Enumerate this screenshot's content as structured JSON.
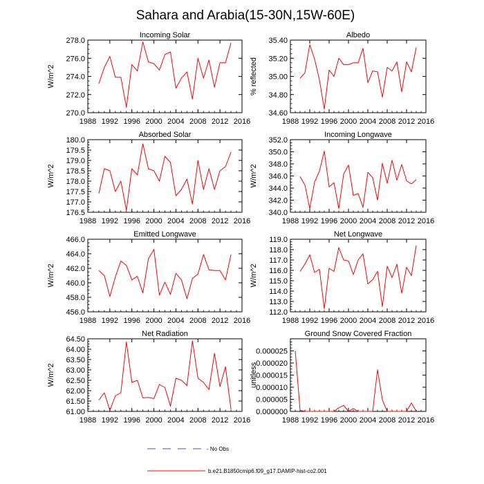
{
  "title": "Sahara and Arabia(15-30N,15W-60E)",
  "legend": {
    "entries": [
      {
        "label": "- No Obs",
        "style": "dashed",
        "color": "#4b4bc8"
      },
      {
        "label": "b.e21.B1850cmip6.f09_g17.DAMIP-hist-co2.001",
        "style": "solid",
        "color": "#ff0000"
      }
    ]
  },
  "chart_data": [
    {
      "type": "line",
      "title": "Incoming Solar",
      "ylabel": "W/m^2",
      "xlim": [
        1988,
        2016
      ],
      "ylim": [
        270,
        278
      ],
      "xticks": [
        "1988",
        "1992",
        "1996",
        "2000",
        "2004",
        "2008",
        "2012",
        "2016"
      ],
      "yticks": [
        "270.0",
        "272.0",
        "274.0",
        "276.0",
        "278.0"
      ],
      "series": [
        {
          "color": "#ff0000",
          "x": [
            1990,
            1991,
            1992,
            1993,
            1994,
            1995,
            1996,
            1997,
            1998,
            1999,
            2000,
            2001,
            2002,
            2003,
            2004,
            2005,
            2006,
            2007,
            2008,
            2009,
            2010,
            2011,
            2012,
            2013,
            2014
          ],
          "values": [
            273.2,
            275.0,
            276.2,
            273.9,
            273.9,
            270.6,
            275.3,
            274.6,
            277.8,
            275.6,
            275.4,
            274.7,
            276.4,
            276.7,
            272.7,
            273.8,
            274.5,
            271.5,
            276.0,
            273.8,
            275.8,
            272.8,
            275.5,
            275.5,
            277.7
          ]
        }
      ]
    },
    {
      "type": "line",
      "title": "Albedo",
      "ylabel": "% reflected",
      "xlim": [
        1988,
        2016
      ],
      "ylim": [
        34.6,
        35.4
      ],
      "xticks": [
        "1988",
        "1992",
        "1996",
        "2000",
        "2004",
        "2008",
        "2012",
        "2016"
      ],
      "yticks": [
        "34.60",
        "34.80",
        "35.00",
        "35.20",
        "35.40"
      ],
      "series": [
        {
          "color": "#ff0000",
          "x": [
            1990,
            1991,
            1992,
            1993,
            1994,
            1995,
            1996,
            1997,
            1998,
            1999,
            2000,
            2001,
            2002,
            2003,
            2004,
            2005,
            2006,
            2007,
            2008,
            2009,
            2010,
            2011,
            2012,
            2013,
            2014
          ],
          "values": [
            34.98,
            35.04,
            35.35,
            35.19,
            34.96,
            34.64,
            35.07,
            35.0,
            35.2,
            35.13,
            35.13,
            35.15,
            35.15,
            35.31,
            34.93,
            35.06,
            35.05,
            34.77,
            35.1,
            35.06,
            35.16,
            34.83,
            35.16,
            35.05,
            35.32
          ]
        }
      ]
    },
    {
      "type": "line",
      "title": "Absorbed Solar",
      "ylabel": "W/m^2",
      "xlim": [
        1988,
        2016
      ],
      "ylim": [
        176.5,
        180.0
      ],
      "xticks": [
        "1988",
        "1992",
        "1996",
        "2000",
        "2004",
        "2008",
        "2012",
        "2016"
      ],
      "yticks": [
        "176.5",
        "177.0",
        "177.5",
        "178.0",
        "178.5",
        "179.0",
        "179.5",
        "180.0"
      ],
      "series": [
        {
          "color": "#ff0000",
          "x": [
            1990,
            1991,
            1992,
            1993,
            1994,
            1995,
            1996,
            1997,
            1998,
            1999,
            2000,
            2001,
            2002,
            2003,
            2004,
            2005,
            2006,
            2007,
            2008,
            2009,
            2010,
            2011,
            2012,
            2013,
            2014
          ],
          "values": [
            177.4,
            178.6,
            178.5,
            177.5,
            178.0,
            176.6,
            178.6,
            178.3,
            179.8,
            178.6,
            178.5,
            178.0,
            179.2,
            178.9,
            177.3,
            177.6,
            178.1,
            176.9,
            179.0,
            177.6,
            178.6,
            177.6,
            178.5,
            178.7,
            179.4
          ]
        }
      ]
    },
    {
      "type": "line",
      "title": "Incoming Longwave",
      "ylabel": "W/m^2",
      "xlim": [
        1988,
        2016
      ],
      "ylim": [
        340,
        352
      ],
      "xticks": [
        "1988",
        "1992",
        "1996",
        "2000",
        "2004",
        "2008",
        "2012",
        "2016"
      ],
      "yticks": [
        "340.0",
        "342.0",
        "344.0",
        "346.0",
        "348.0",
        "350.0",
        "352.0"
      ],
      "series": [
        {
          "color": "#ff0000",
          "x": [
            1990,
            1991,
            1992,
            1993,
            1994,
            1995,
            1996,
            1997,
            1998,
            1999,
            2000,
            2001,
            2002,
            2003,
            2004,
            2005,
            2006,
            2007,
            2008,
            2009,
            2010,
            2011,
            2012,
            2013,
            2014
          ],
          "values": [
            345.9,
            344.5,
            340.6,
            345.0,
            346.8,
            350.1,
            344.2,
            344.9,
            340.6,
            346.3,
            347.8,
            342.8,
            343.1,
            340.8,
            346.6,
            345.7,
            342.0,
            348.1,
            344.8,
            348.6,
            345.3,
            347.9,
            345.2,
            344.7,
            345.4
          ]
        }
      ]
    },
    {
      "type": "line",
      "title": "Emitted Longwave",
      "ylabel": "W/m^2",
      "xlim": [
        1988,
        2016
      ],
      "ylim": [
        456,
        466
      ],
      "xticks": [
        "1988",
        "1992",
        "1996",
        "2000",
        "2004",
        "2008",
        "2012",
        "2016"
      ],
      "yticks": [
        "456.0",
        "458.0",
        "460.0",
        "462.0",
        "464.0",
        "466.0"
      ],
      "series": [
        {
          "color": "#ff0000",
          "x": [
            1990,
            1991,
            1992,
            1993,
            1994,
            1995,
            1996,
            1997,
            1998,
            1999,
            2000,
            2001,
            2002,
            2003,
            2004,
            2005,
            2006,
            2007,
            2008,
            2009,
            2010,
            2011,
            2012,
            2013,
            2014
          ],
          "values": [
            461.7,
            461.0,
            458.1,
            460.8,
            463.0,
            462.4,
            460.4,
            460.9,
            458.6,
            463.3,
            464.6,
            458.3,
            460.1,
            458.4,
            461.3,
            460.4,
            457.8,
            460.6,
            461.2,
            463.9,
            461.8,
            461.7,
            461.7,
            460.4,
            463.9
          ]
        }
      ]
    },
    {
      "type": "line",
      "title": "Net Longwave",
      "ylabel": "W/m^2",
      "xlim": [
        1988,
        2016
      ],
      "ylim": [
        112,
        119
      ],
      "xticks": [
        "1988",
        "1992",
        "1996",
        "2000",
        "2004",
        "2008",
        "2012",
        "2016"
      ],
      "yticks": [
        "112.0",
        "113.0",
        "114.0",
        "115.0",
        "116.0",
        "117.0",
        "118.0",
        "119.0"
      ],
      "series": [
        {
          "color": "#ff0000",
          "x": [
            1990,
            1991,
            1992,
            1993,
            1994,
            1995,
            1996,
            1997,
            1998,
            1999,
            2000,
            2001,
            2002,
            2003,
            2004,
            2005,
            2006,
            2007,
            2008,
            2009,
            2010,
            2011,
            2012,
            2013,
            2014
          ],
          "values": [
            115.9,
            116.6,
            117.5,
            115.8,
            116.1,
            112.3,
            116.2,
            115.9,
            118.2,
            117.0,
            116.9,
            115.6,
            117.0,
            117.6,
            114.7,
            115.1,
            115.9,
            112.5,
            116.4,
            115.3,
            116.6,
            113.8,
            116.3,
            115.5,
            118.4
          ]
        }
      ]
    },
    {
      "type": "line",
      "title": "Net Radiation",
      "ylabel": "W/m^2",
      "xlim": [
        1988,
        2016
      ],
      "ylim": [
        61.0,
        64.5
      ],
      "xticks": [
        "1988",
        "1992",
        "1996",
        "2000",
        "2004",
        "2008",
        "2012",
        "2016"
      ],
      "yticks": [
        "61.00",
        "61.50",
        "62.00",
        "62.50",
        "63.00",
        "63.50",
        "64.00",
        "64.50"
      ],
      "series": [
        {
          "color": "#ff0000",
          "x": [
            1990,
            1991,
            1992,
            1993,
            1994,
            1995,
            1996,
            1997,
            1998,
            1999,
            2000,
            2001,
            2002,
            2003,
            2004,
            2005,
            2006,
            2007,
            2008,
            2009,
            2010,
            2011,
            2012,
            2013,
            2014
          ],
          "values": [
            61.55,
            61.9,
            61.05,
            61.75,
            61.9,
            64.35,
            62.4,
            62.5,
            61.65,
            61.67,
            61.62,
            62.3,
            62.15,
            61.25,
            62.6,
            62.5,
            62.25,
            64.4,
            62.6,
            62.4,
            62.05,
            63.8,
            62.2,
            63.15,
            61.1
          ]
        }
      ]
    },
    {
      "type": "line",
      "title": "Ground Snow Covered Fraction",
      "ylabel": "unitless",
      "xlim": [
        1988,
        2016
      ],
      "ylim": [
        0,
        3e-05
      ],
      "xticks": [
        "1988",
        "1992",
        "1996",
        "2000",
        "2004",
        "2008",
        "2012",
        "2016"
      ],
      "yticks": [
        "0.000000",
        "0.000005",
        "0.000010",
        "0.000015",
        "0.000020",
        "0.000025"
      ],
      "series": [
        {
          "color": "#ff0000",
          "x": [
            1989,
            1990,
            1991,
            1992,
            1993,
            1994,
            1995,
            1996,
            1997,
            1998,
            1999,
            2000,
            2001,
            2002,
            2003,
            2004,
            2005,
            2006,
            2007,
            2008,
            2009,
            2010,
            2011,
            2012,
            2013,
            2014
          ],
          "values": [
            2.5e-05,
            5e-07,
            0.0,
            0.0,
            0.0,
            0.0,
            0.0,
            0.0,
            0.0,
            1.5e-06,
            2.5e-06,
            0.0,
            1.2e-06,
            0.0,
            0.0,
            0.0,
            0.0,
            1.72e-05,
            4.8e-06,
            0.0,
            0.0,
            0.0,
            0.0,
            0.0,
            3.5e-06,
            0.0
          ]
        }
      ]
    }
  ]
}
